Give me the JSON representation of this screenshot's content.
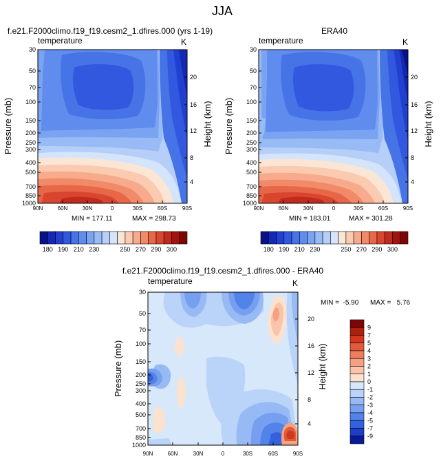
{
  "figure": {
    "title": "JJA"
  },
  "chart_data": [
    {
      "type": "heatmap",
      "title": "f.e21.F2000climo.f19_f19.cesm2_1.dfires.000 (yrs 1-19)",
      "variable": "temperature",
      "units": "K",
      "ylabel": "Pressure (mb)",
      "y2label": "Height (km)",
      "x_ticks": [
        "90N",
        "60N",
        "30N",
        "0",
        "30S",
        "60S",
        "90S"
      ],
      "y_ticks": [
        "30",
        "50",
        "70",
        "100",
        "150",
        "200",
        "250",
        "300",
        "400",
        "500",
        "700",
        "850",
        "1000"
      ],
      "y2_ticks": [
        "20",
        "16",
        "12",
        "8",
        "4"
      ],
      "ylim": [
        1000,
        30
      ],
      "min_label": "MIN = 177.11",
      "max_label": "MAX = 298.73",
      "min": 177.11,
      "max": 298.73
    },
    {
      "type": "heatmap",
      "title": "ERA40",
      "variable": "temperature",
      "units": "K",
      "ylabel": "Pressure (mb)",
      "y2label": "Height (km)",
      "x_ticks": [
        "90N",
        "60N",
        "30N",
        "0",
        "30S",
        "60S",
        "90S"
      ],
      "y_ticks": [
        "30",
        "50",
        "70",
        "100",
        "150",
        "200",
        "250",
        "300",
        "400",
        "500",
        "700",
        "850",
        "1000"
      ],
      "y2_ticks": [
        "20",
        "16",
        "12",
        "8",
        "4"
      ],
      "ylim": [
        1000,
        30
      ],
      "min_label": "MIN = 183.01",
      "max_label": "MAX = 301.28",
      "min": 183.01,
      "max": 301.28
    },
    {
      "type": "heatmap",
      "title": "f.e21.F2000climo.f19_f19.cesm2_1.dfires.000 - ERA40",
      "variable": "temperature",
      "units": "K",
      "ylabel": "Pressure (mb)",
      "y2label": "Height (km)",
      "x_ticks": [
        "90N",
        "60N",
        "30N",
        "0",
        "30S",
        "60S",
        "90S"
      ],
      "y_ticks": [
        "30",
        "50",
        "70",
        "100",
        "150",
        "200",
        "250",
        "300",
        "400",
        "500",
        "700",
        "850",
        "1000"
      ],
      "y2_ticks": [
        "20",
        "16",
        "12",
        "8",
        "4"
      ],
      "ylim": [
        1000,
        30
      ],
      "min_label": "MIN =  -5.90",
      "max_label": "MAX =   5.76",
      "min": -5.9,
      "max": 5.76
    }
  ],
  "colorbars": {
    "abs": {
      "labels": [
        "180",
        "190",
        "210",
        "230",
        "250",
        "270",
        "290",
        "300"
      ],
      "colors": [
        "#08108a",
        "#1527b5",
        "#2240cf",
        "#3158de",
        "#4673e6",
        "#608ced",
        "#7aa4f2",
        "#98baf5",
        "#b5cff8",
        "#d4e5fb",
        "#fbe6d6",
        "#fbcbb1",
        "#f8ab8c",
        "#f18a68",
        "#e76748",
        "#d84630",
        "#c12a1c",
        "#a2130e",
        "#7e0505"
      ]
    },
    "diff": {
      "labels": [
        "9",
        "7",
        "5",
        "4",
        "3",
        "2",
        "1",
        "0",
        "-1",
        "-2",
        "-3",
        "-4",
        "-5",
        "-7",
        "-9"
      ],
      "colors": [
        "#7e0505",
        "#b0200f",
        "#d0381f",
        "#e25a3c",
        "#ee7e5e",
        "#f5a283",
        "#f9c4a9",
        "#fbe2cf",
        "#d7e8fb",
        "#b9d4f8",
        "#97b9f4",
        "#769ff0",
        "#5283e8",
        "#3461dd",
        "#1d3ec9",
        "#0a1a96"
      ]
    }
  }
}
